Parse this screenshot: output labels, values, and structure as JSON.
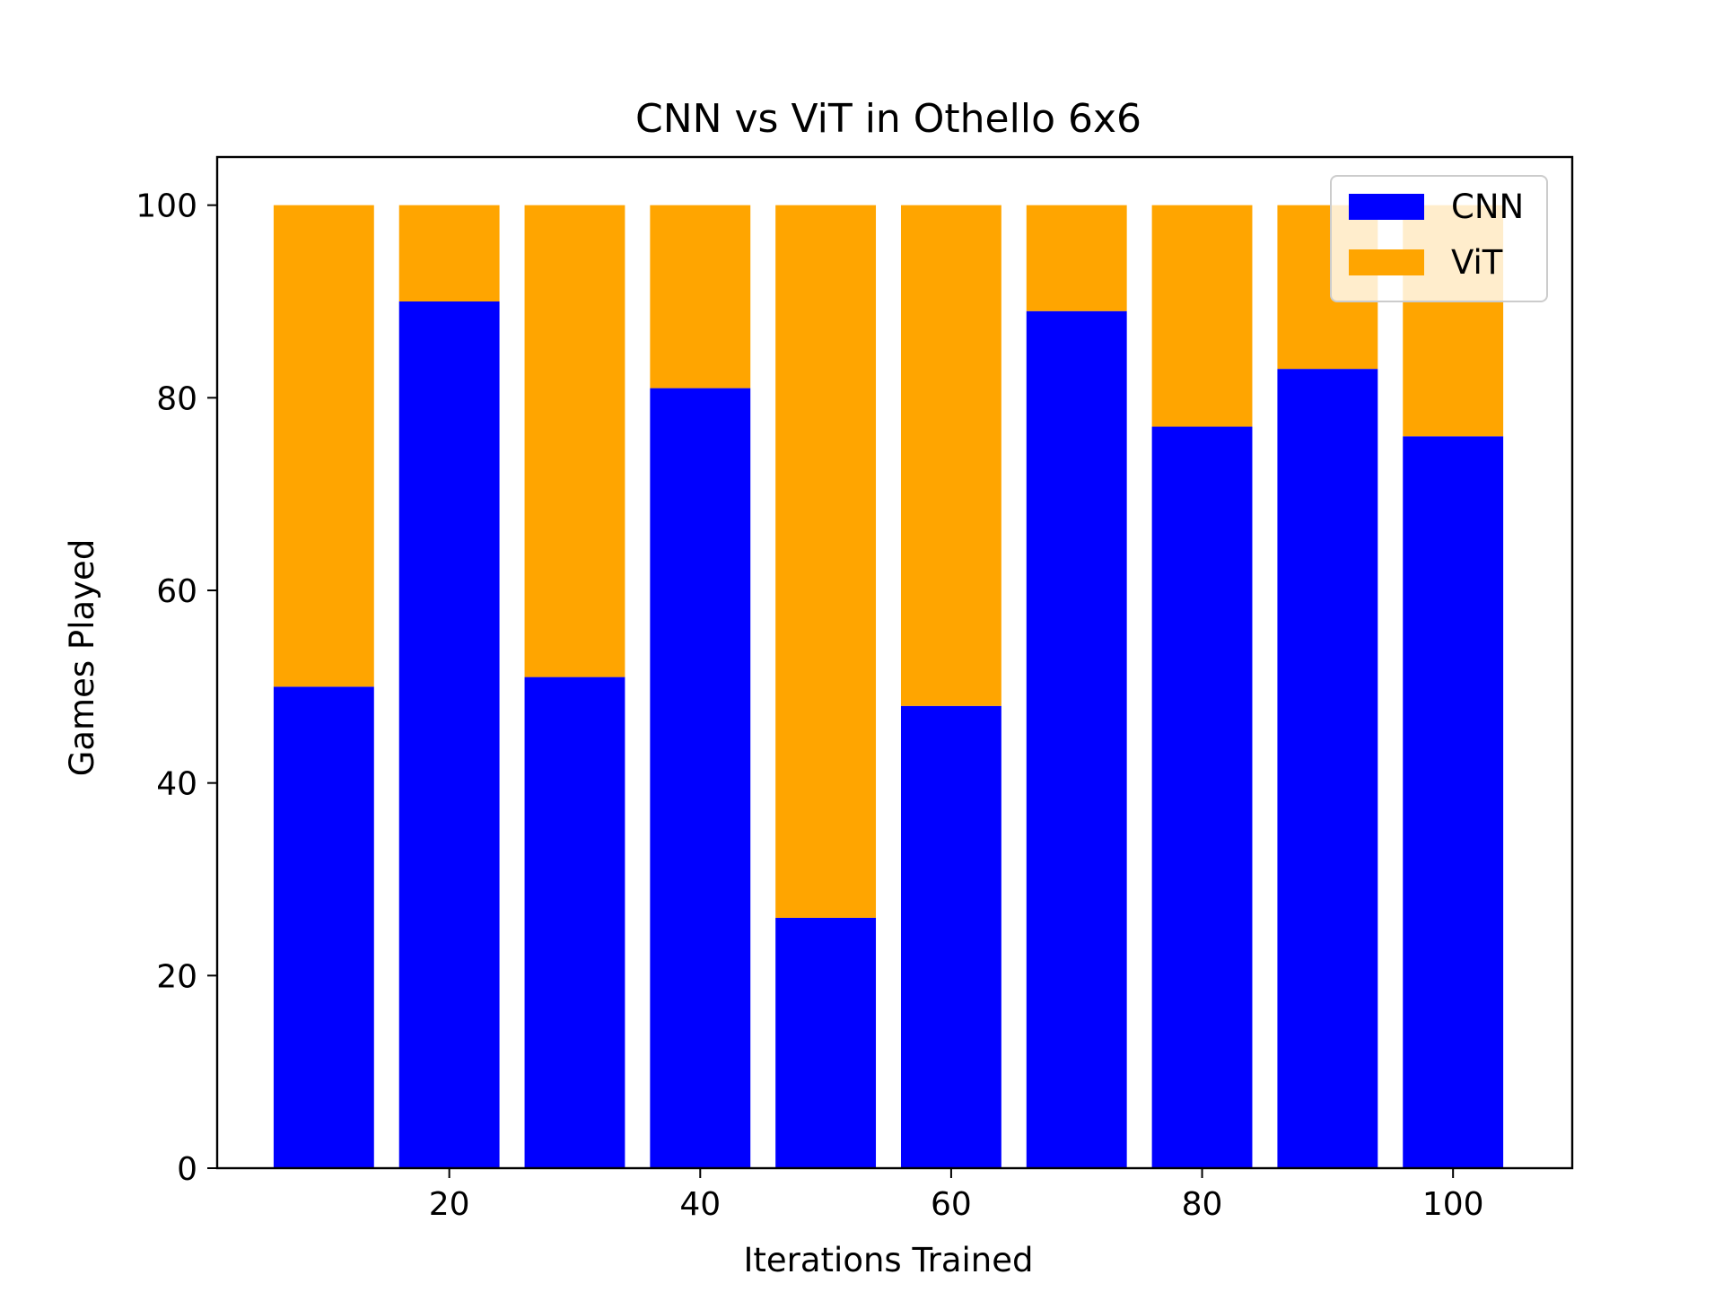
{
  "chart_data": {
    "type": "bar",
    "stacked": true,
    "title": "CNN vs ViT in Othello 6x6",
    "xlabel": "Iterations Trained",
    "ylabel": "Games Played",
    "x": [
      10,
      20,
      30,
      40,
      50,
      60,
      70,
      80,
      90,
      100
    ],
    "series": [
      {
        "name": "CNN",
        "color": "#0000ff",
        "values": [
          50,
          90,
          51,
          81,
          26,
          48,
          89,
          77,
          83,
          76
        ]
      },
      {
        "name": "ViT",
        "color": "#ffa500",
        "values": [
          50,
          10,
          49,
          19,
          74,
          52,
          11,
          23,
          17,
          24
        ]
      }
    ],
    "bar_width": 8,
    "xlim": [
      1.5,
      109.5
    ],
    "ylim": [
      0,
      105
    ],
    "xticks": [
      20,
      40,
      60,
      80,
      100
    ],
    "yticks": [
      0,
      20,
      40,
      60,
      80,
      100
    ],
    "legend": {
      "position": "top-right",
      "entries": [
        "CNN",
        "ViT"
      ]
    },
    "grid": false
  }
}
